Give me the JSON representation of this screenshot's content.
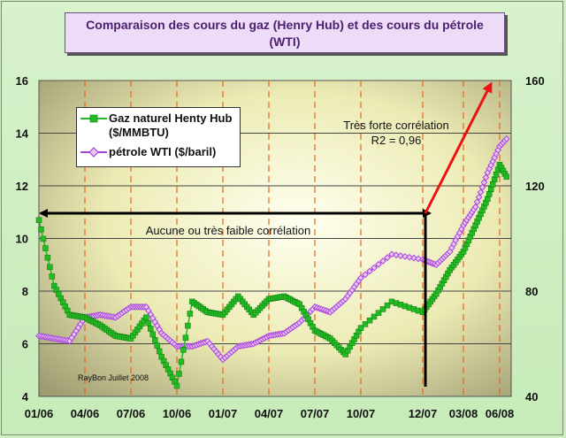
{
  "chart_data": {
    "type": "line",
    "title": "Comparaison des cours du gaz (Henry Hub) et des cours du pétrole (WTI)",
    "title_lines": [
      "Comparaison des cours du gaz (Henry Hub) et des cours du pétrole",
      "(WTI)"
    ],
    "x_tick_labels": [
      "01/06",
      "04/06",
      "07/06",
      "10/06",
      "01/07",
      "04/07",
      "07/07",
      "10/07",
      "12/07",
      "03/08",
      "06/08"
    ],
    "y_left": {
      "ylim": [
        4,
        16
      ],
      "ticks": [
        "4",
        "6",
        "8",
        "10",
        "12",
        "14",
        "16"
      ]
    },
    "y_right": {
      "ylim": [
        40,
        160
      ],
      "ticks": [
        "40",
        "80",
        "120",
        "160"
      ]
    },
    "grid": true,
    "legend_placement": "top-left",
    "series": [
      {
        "name": "Gaz naturel Henty Hub",
        "name_line2": "($/MMBTU)",
        "axis": "left",
        "color": "#22bb22",
        "x": [
          "01/06",
          "02/06",
          "03/06",
          "04/06",
          "05/06",
          "06/06",
          "07/06",
          "08/06",
          "09/06",
          "10/06",
          "11/06",
          "12/06",
          "01/07",
          "02/07",
          "03/07",
          "04/07",
          "05/07",
          "06/07",
          "07/07",
          "08/07",
          "09/07",
          "10/07",
          "11/07",
          "12/07",
          "01/08",
          "02/08",
          "03/08",
          "04/08",
          "05/08",
          "06/08",
          "07/08"
        ],
        "values": [
          10.7,
          8.2,
          7.1,
          7.0,
          6.7,
          6.3,
          6.2,
          7.0,
          5.5,
          4.4,
          7.6,
          7.2,
          7.1,
          7.8,
          7.1,
          7.7,
          7.8,
          7.5,
          6.5,
          6.2,
          5.6,
          6.6,
          7.6,
          7.2,
          7.9,
          8.8,
          9.5,
          10.5,
          11.5,
          12.8,
          12.0
        ]
      },
      {
        "name": "pétrole WTI ($/baril)",
        "axis": "right",
        "color": "#aa44dd",
        "x": [
          "01/06",
          "02/06",
          "03/06",
          "04/06",
          "05/06",
          "06/06",
          "07/06",
          "08/06",
          "09/06",
          "10/06",
          "11/06",
          "12/06",
          "01/07",
          "02/07",
          "03/07",
          "04/07",
          "05/07",
          "06/07",
          "07/07",
          "08/07",
          "09/07",
          "10/07",
          "11/07",
          "12/07",
          "01/08",
          "02/08",
          "03/08",
          "04/08",
          "05/08",
          "06/08",
          "07/08"
        ],
        "values": [
          63,
          62,
          61,
          70,
          71,
          70,
          74,
          74,
          64,
          59,
          59,
          61,
          54,
          59,
          60,
          63,
          64,
          68,
          74,
          72,
          77,
          85,
          94,
          92,
          90,
          95,
          105,
          112,
          125,
          135,
          140
        ]
      }
    ],
    "annotations": {
      "strong": "Très forte corrélation",
      "r2": "R2 = 0,96",
      "weak": "Aucune  ou très faible corrélation",
      "credit": "RayBon Juillet 2008"
    }
  }
}
